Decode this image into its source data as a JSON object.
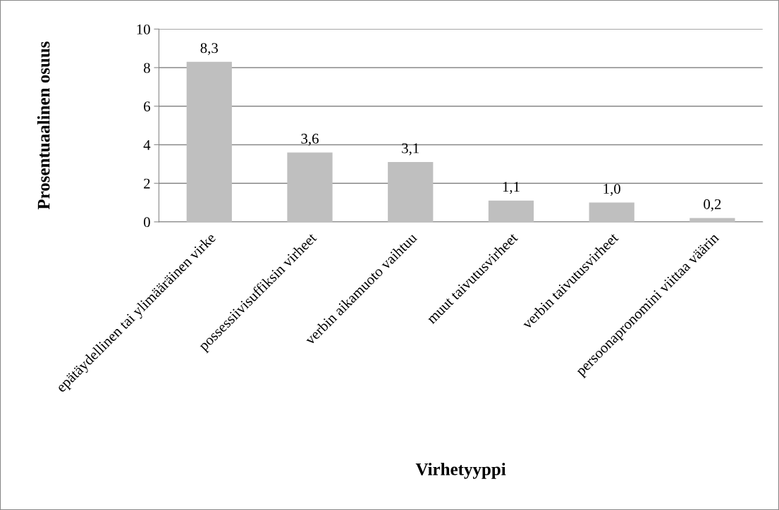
{
  "chart_data": {
    "type": "bar",
    "xlabel": "Virhetyyppi",
    "ylabel": "Prosentuaalinen osuus",
    "categories": [
      "epätäydellinen tai ylimääräinen virke",
      "possessiivisuffiksin virheet",
      "verbin aikamuoto vaihtuu",
      "muut taivutusvirheet",
      "verbin taivutusvirheet",
      "persoonapronomini viittaa väärin"
    ],
    "values": [
      8.3,
      3.6,
      3.1,
      1.1,
      1.0,
      0.2
    ],
    "value_labels": [
      "8,3",
      "3,6",
      "3,1",
      "1,1",
      "1,0",
      "0,2"
    ],
    "color": "#bfbfbf",
    "ylim": [
      0,
      10
    ],
    "yticks": [
      0,
      2,
      4,
      6,
      8,
      10
    ],
    "grid": "y",
    "legend": false
  }
}
